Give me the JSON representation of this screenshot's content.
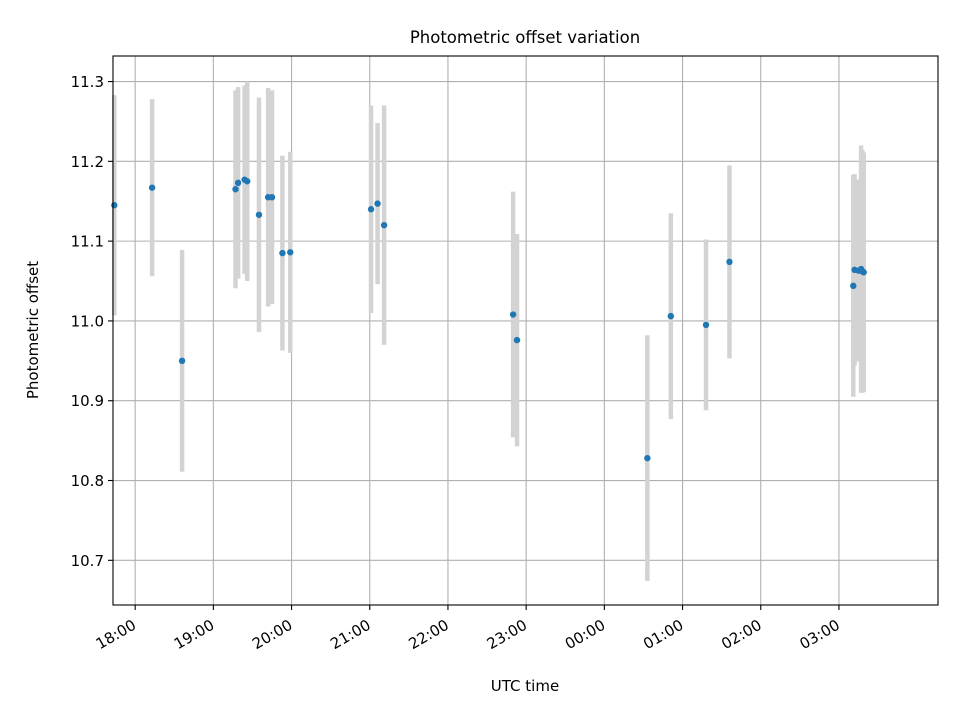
{
  "chart_data": {
    "type": "scatter",
    "title": "Photometric offset variation",
    "xlabel": "UTC time",
    "ylabel": "Photometric offset",
    "x_unit": "hours",
    "x_ticks": [
      "18:00",
      "19:00",
      "20:00",
      "21:00",
      "22:00",
      "23:00",
      "00:00",
      "01:00",
      "02:00",
      "03:00"
    ],
    "y_ticks": [
      "10.7",
      "10.8",
      "10.9",
      "11.0",
      "11.1",
      "11.2",
      "11.3"
    ],
    "xlim": [
      "17:43",
      "28:16"
    ],
    "ylim": [
      10.644,
      11.332
    ],
    "grid": true,
    "point_color": "#1f77b4",
    "errorbar_color": "#d3d3d3",
    "series": [
      {
        "points": [
          {
            "x": "17:44",
            "y": 11.145,
            "err": 0.138
          },
          {
            "x": "18:13",
            "y": 11.167,
            "err": 0.111
          },
          {
            "x": "18:36",
            "y": 10.95,
            "err": 0.139
          },
          {
            "x": "19:17",
            "y": 11.165,
            "err": 0.124
          },
          {
            "x": "19:19",
            "y": 11.173,
            "err": 0.12
          },
          {
            "x": "19:24",
            "y": 11.177,
            "err": 0.118
          },
          {
            "x": "19:26",
            "y": 11.175,
            "err": 0.125
          },
          {
            "x": "19:35",
            "y": 11.133,
            "err": 0.147
          },
          {
            "x": "19:42",
            "y": 11.155,
            "err": 0.137
          },
          {
            "x": "19:45",
            "y": 11.155,
            "err": 0.134
          },
          {
            "x": "19:53",
            "y": 11.085,
            "err": 0.122
          },
          {
            "x": "19:59",
            "y": 11.086,
            "err": 0.126
          },
          {
            "x": "21:01",
            "y": 11.14,
            "err": 0.13
          },
          {
            "x": "21:06",
            "y": 11.147,
            "err": 0.101
          },
          {
            "x": "21:11",
            "y": 11.12,
            "err": 0.15
          },
          {
            "x": "22:50",
            "y": 11.008,
            "err": 0.154
          },
          {
            "x": "22:53",
            "y": 10.976,
            "err": 0.133
          },
          {
            "x": "24:33",
            "y": 10.828,
            "err": 0.154
          },
          {
            "x": "24:51",
            "y": 11.006,
            "err": 0.129
          },
          {
            "x": "25:18",
            "y": 10.995,
            "err": 0.107
          },
          {
            "x": "25:36",
            "y": 11.074,
            "err": 0.121
          },
          {
            "x": "27:11",
            "y": 11.044,
            "err": 0.139
          },
          {
            "x": "27:12",
            "y": 11.064,
            "err": 0.12
          },
          {
            "x": "27:15",
            "y": 11.063,
            "err": 0.114
          },
          {
            "x": "27:17",
            "y": 11.065,
            "err": 0.155
          },
          {
            "x": "27:18",
            "y": 11.062,
            "err": 0.152
          },
          {
            "x": "27:19",
            "y": 11.061,
            "err": 0.15
          }
        ]
      }
    ]
  }
}
